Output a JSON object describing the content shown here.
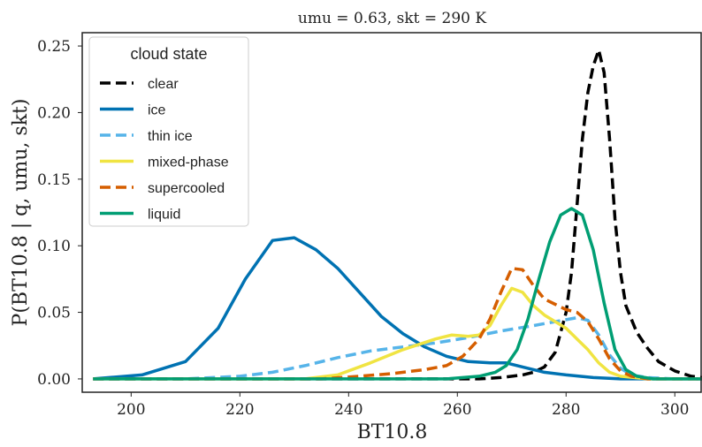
{
  "chart_data": {
    "type": "line",
    "title": "umu = 0.63, skt = 290 K",
    "xlabel": "BT10.8",
    "ylabel": "P(BT10.8 | q, umu, skt)",
    "xlim": [
      191,
      305
    ],
    "ylim": [
      -0.01,
      0.26
    ],
    "xticks": [
      200,
      220,
      240,
      260,
      280,
      300
    ],
    "yticks": [
      0.0,
      0.05,
      0.1,
      0.15,
      0.2,
      0.25
    ],
    "ytick_labels": [
      "0.00",
      "0.05",
      "0.10",
      "0.15",
      "0.20",
      "0.25"
    ],
    "grid": false,
    "legend": {
      "title": "cloud state",
      "position": "top-left"
    },
    "series": [
      {
        "name": "clear",
        "color": "#000000",
        "dashed": true,
        "x": [
          193,
          250,
          264,
          268,
          272,
          274,
          276,
          278,
          280,
          281,
          282,
          283,
          284,
          285,
          286,
          287,
          288,
          289,
          290,
          291,
          293,
          295,
          297,
          300,
          303,
          305
        ],
        "y": [
          0.0,
          0.0,
          0.0,
          0.001,
          0.003,
          0.005,
          0.009,
          0.02,
          0.05,
          0.08,
          0.13,
          0.18,
          0.215,
          0.235,
          0.247,
          0.23,
          0.18,
          0.12,
          0.08,
          0.055,
          0.035,
          0.023,
          0.013,
          0.006,
          0.002,
          0.001
        ]
      },
      {
        "name": "ice",
        "color": "#0072b2",
        "dashed": false,
        "x": [
          193,
          202,
          210,
          216,
          221,
          226,
          230,
          234,
          238,
          242,
          246,
          250,
          254,
          258,
          262,
          266,
          269,
          272,
          276,
          280,
          285,
          290,
          295,
          305
        ],
        "y": [
          0.0,
          0.003,
          0.013,
          0.038,
          0.075,
          0.104,
          0.106,
          0.097,
          0.083,
          0.065,
          0.047,
          0.034,
          0.024,
          0.017,
          0.013,
          0.012,
          0.012,
          0.009,
          0.005,
          0.003,
          0.001,
          0.0,
          0.0,
          0.0
        ]
      },
      {
        "name": "thin ice",
        "color": "#56b4e9",
        "dashed": true,
        "x": [
          193,
          210,
          220,
          226,
          232,
          238,
          244,
          250,
          256,
          262,
          268,
          274,
          278,
          282,
          284,
          286,
          288,
          290,
          292,
          295,
          300,
          305
        ],
        "y": [
          0.0,
          0.0,
          0.002,
          0.005,
          0.01,
          0.016,
          0.021,
          0.024,
          0.027,
          0.031,
          0.036,
          0.04,
          0.043,
          0.046,
          0.044,
          0.033,
          0.018,
          0.008,
          0.003,
          0.001,
          0.0,
          0.0
        ]
      },
      {
        "name": "mixed-phase",
        "color": "#f0e442",
        "dashed": false,
        "x": [
          193,
          232,
          238,
          244,
          250,
          256,
          259,
          262,
          264,
          266,
          268,
          270,
          272,
          274,
          276,
          278,
          280,
          282,
          284,
          286,
          288,
          290,
          295,
          305
        ],
        "y": [
          0.0,
          0.0,
          0.003,
          0.012,
          0.022,
          0.03,
          0.033,
          0.032,
          0.033,
          0.04,
          0.055,
          0.068,
          0.065,
          0.055,
          0.048,
          0.043,
          0.038,
          0.03,
          0.022,
          0.012,
          0.005,
          0.002,
          0.0,
          0.0
        ]
      },
      {
        "name": "supercooled",
        "color": "#d55e00",
        "dashed": true,
        "x": [
          193,
          235,
          242,
          248,
          254,
          258,
          261,
          264,
          266,
          268,
          270,
          272,
          274,
          276,
          278,
          280,
          282,
          284,
          286,
          288,
          290,
          292,
          295,
          305
        ],
        "y": [
          0.0,
          0.0,
          0.002,
          0.004,
          0.007,
          0.01,
          0.017,
          0.03,
          0.045,
          0.065,
          0.083,
          0.082,
          0.07,
          0.06,
          0.056,
          0.052,
          0.05,
          0.043,
          0.03,
          0.015,
          0.006,
          0.002,
          0.0,
          0.0
        ]
      },
      {
        "name": "liquid",
        "color": "#009e73",
        "dashed": false,
        "x": [
          193,
          258,
          264,
          267,
          269,
          271,
          273,
          275,
          277,
          279,
          281,
          283,
          285,
          287,
          289,
          291,
          293,
          296,
          300,
          305
        ],
        "y": [
          0.0,
          0.0,
          0.002,
          0.005,
          0.01,
          0.022,
          0.045,
          0.075,
          0.103,
          0.123,
          0.128,
          0.123,
          0.097,
          0.057,
          0.022,
          0.007,
          0.002,
          0.0,
          0.0,
          0.0
        ]
      }
    ]
  }
}
